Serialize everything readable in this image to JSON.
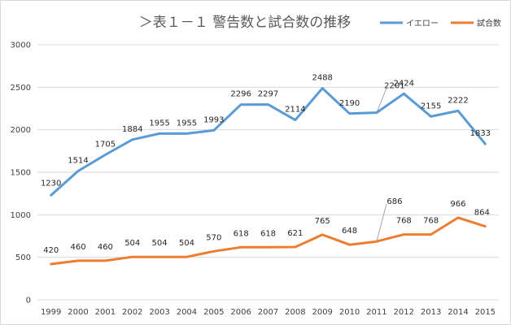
{
  "chart_data": {
    "type": "line",
    "title": "＞表１－１ 警告数と試合数の推移",
    "categories": [
      "1999",
      "2000",
      "2001",
      "2002",
      "2003",
      "2004",
      "2005",
      "2006",
      "2007",
      "2008",
      "2009",
      "2010",
      "2011",
      "2012",
      "2013",
      "2014",
      "2015"
    ],
    "series": [
      {
        "name": "イエロー",
        "color": "#5b9bd5",
        "values": [
          1230,
          1514,
          1705,
          1884,
          1955,
          1955,
          1993,
          2296,
          2297,
          2114,
          2488,
          2190,
          2201,
          2424,
          2155,
          2222,
          1833
        ]
      },
      {
        "name": "試合数",
        "color": "#ed7d31",
        "values": [
          420,
          460,
          460,
          504,
          504,
          504,
          570,
          618,
          618,
          621,
          765,
          648,
          686,
          768,
          768,
          966,
          864
        ]
      }
    ],
    "ylim": [
      0,
      3000
    ],
    "yticks": [
      0,
      500,
      1000,
      1500,
      2000,
      2500,
      3000
    ],
    "grid": true,
    "legend": "top-right"
  }
}
